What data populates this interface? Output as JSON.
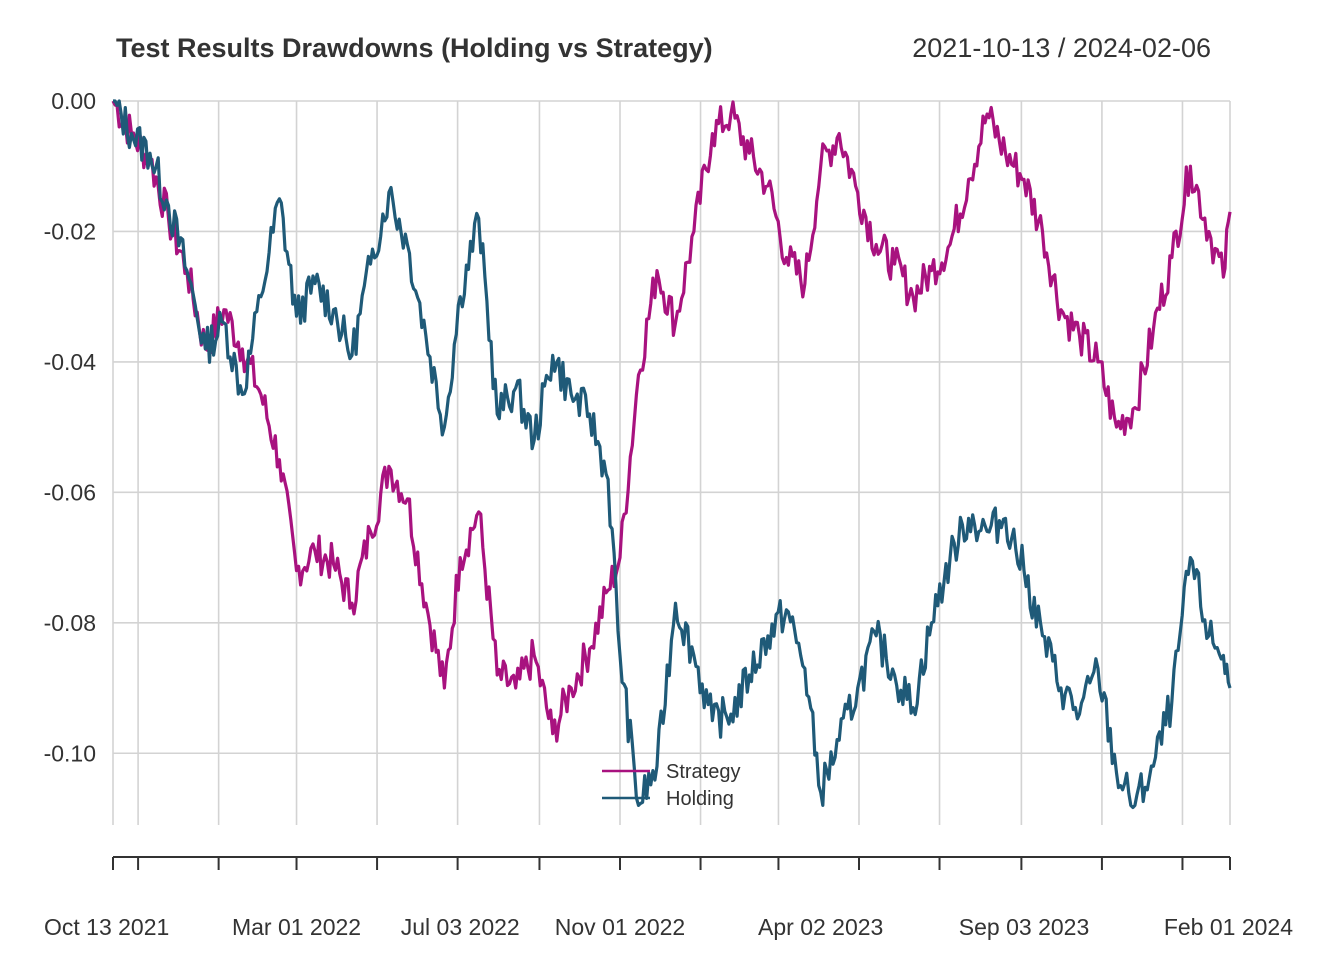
{
  "chart_data": {
    "type": "line",
    "title": "Test Results Drawdowns (Holding vs Strategy)",
    "date_range": "2021-10-13 / 2024-02-06",
    "xlabel": "",
    "ylabel": "",
    "x_range": [
      "2021-10-13",
      "2024-02-06"
    ],
    "ylim": [
      -0.111,
      0.0
    ],
    "y_ticks": [
      "0.00",
      "-0.02",
      "-0.04",
      "-0.06",
      "-0.08",
      "-0.10"
    ],
    "y_tick_values": [
      0.0,
      -0.02,
      -0.04,
      -0.06,
      -0.08,
      -0.1
    ],
    "x_tick_labels": [
      {
        "date": "2021-10-13",
        "label": "Oct 13 2021"
      },
      {
        "date": "2022-03-01",
        "label": "Mar 01 2022"
      },
      {
        "date": "2022-07-03",
        "label": "Jul 03 2022"
      },
      {
        "date": "2022-11-01",
        "label": "Nov 01 2022"
      },
      {
        "date": "2023-04-02",
        "label": "Apr 02 2023"
      },
      {
        "date": "2023-09-03",
        "label": "Sep 03 2023"
      },
      {
        "date": "2024-02-01",
        "label": "Feb 01 2024"
      }
    ],
    "grid": true,
    "legend_position": "bottom-center",
    "series": [
      {
        "name": "Strategy",
        "color": "#A8127F",
        "points": [
          [
            "2021-10-13",
            0.0
          ],
          [
            "2021-10-27",
            -0.005
          ],
          [
            "2021-11-10",
            -0.009
          ],
          [
            "2021-11-24",
            -0.018
          ],
          [
            "2021-12-08",
            -0.026
          ],
          [
            "2021-12-22",
            -0.038
          ],
          [
            "2022-01-05",
            -0.032
          ],
          [
            "2022-01-19",
            -0.038
          ],
          [
            "2022-02-02",
            -0.045
          ],
          [
            "2022-02-16",
            -0.055
          ],
          [
            "2022-03-01",
            -0.072
          ],
          [
            "2022-03-15",
            -0.069
          ],
          [
            "2022-03-29",
            -0.071
          ],
          [
            "2022-04-12",
            -0.077
          ],
          [
            "2022-04-26",
            -0.066
          ],
          [
            "2022-05-10",
            -0.056
          ],
          [
            "2022-05-24",
            -0.061
          ],
          [
            "2022-06-07",
            -0.077
          ],
          [
            "2022-06-21",
            -0.09
          ],
          [
            "2022-07-03",
            -0.07
          ],
          [
            "2022-07-17",
            -0.063
          ],
          [
            "2022-07-31",
            -0.088
          ],
          [
            "2022-08-14",
            -0.09
          ],
          [
            "2022-08-28",
            -0.085
          ],
          [
            "2022-09-11",
            -0.097
          ],
          [
            "2022-09-25",
            -0.09
          ],
          [
            "2022-10-09",
            -0.084
          ],
          [
            "2022-10-23",
            -0.075
          ],
          [
            "2022-11-01",
            -0.07
          ],
          [
            "2022-11-15",
            -0.042
          ],
          [
            "2022-11-29",
            -0.026
          ],
          [
            "2022-12-13",
            -0.034
          ],
          [
            "2022-12-27",
            -0.02
          ],
          [
            "2023-01-10",
            -0.005
          ],
          [
            "2023-01-24",
            -0.002
          ],
          [
            "2023-02-07",
            -0.008
          ],
          [
            "2023-02-21",
            -0.013
          ],
          [
            "2023-03-07",
            -0.024
          ],
          [
            "2023-03-21",
            -0.028
          ],
          [
            "2023-04-02",
            -0.01
          ],
          [
            "2023-04-16",
            -0.005
          ],
          [
            "2023-04-30",
            -0.014
          ],
          [
            "2023-05-14",
            -0.022
          ],
          [
            "2023-05-28",
            -0.025
          ],
          [
            "2023-06-11",
            -0.03
          ],
          [
            "2023-06-25",
            -0.026
          ],
          [
            "2023-07-09",
            -0.022
          ],
          [
            "2023-07-23",
            -0.012
          ],
          [
            "2023-08-06",
            -0.002
          ],
          [
            "2023-08-20",
            -0.008
          ],
          [
            "2023-09-03",
            -0.012
          ],
          [
            "2023-09-17",
            -0.02
          ],
          [
            "2023-10-01",
            -0.032
          ],
          [
            "2023-10-15",
            -0.036
          ],
          [
            "2023-10-29",
            -0.04
          ],
          [
            "2023-11-12",
            -0.05
          ],
          [
            "2023-11-26",
            -0.047
          ],
          [
            "2023-12-10",
            -0.035
          ],
          [
            "2023-12-24",
            -0.024
          ],
          [
            "2024-01-07",
            -0.01
          ],
          [
            "2024-01-21",
            -0.02
          ],
          [
            "2024-02-01",
            -0.027
          ],
          [
            "2024-02-06",
            -0.017
          ]
        ]
      },
      {
        "name": "Holding",
        "color": "#1F5A78",
        "points": [
          [
            "2021-10-13",
            0.0
          ],
          [
            "2021-10-27",
            -0.005
          ],
          [
            "2021-11-10",
            -0.008
          ],
          [
            "2021-11-24",
            -0.016
          ],
          [
            "2021-12-08",
            -0.026
          ],
          [
            "2021-12-22",
            -0.038
          ],
          [
            "2022-01-05",
            -0.034
          ],
          [
            "2022-01-19",
            -0.045
          ],
          [
            "2022-02-02",
            -0.03
          ],
          [
            "2022-02-16",
            -0.015
          ],
          [
            "2022-03-01",
            -0.033
          ],
          [
            "2022-03-15",
            -0.028
          ],
          [
            "2022-03-29",
            -0.032
          ],
          [
            "2022-04-12",
            -0.039
          ],
          [
            "2022-04-26",
            -0.025
          ],
          [
            "2022-05-10",
            -0.014
          ],
          [
            "2022-05-24",
            -0.022
          ],
          [
            "2022-06-07",
            -0.036
          ],
          [
            "2022-06-21",
            -0.05
          ],
          [
            "2022-07-03",
            -0.03
          ],
          [
            "2022-07-17",
            -0.018
          ],
          [
            "2022-07-31",
            -0.048
          ],
          [
            "2022-08-14",
            -0.044
          ],
          [
            "2022-08-28",
            -0.052
          ],
          [
            "2022-09-11",
            -0.039
          ],
          [
            "2022-09-25",
            -0.045
          ],
          [
            "2022-10-09",
            -0.048
          ],
          [
            "2022-10-23",
            -0.058
          ],
          [
            "2022-11-01",
            -0.085
          ],
          [
            "2022-11-15",
            -0.108
          ],
          [
            "2022-11-29",
            -0.102
          ],
          [
            "2022-12-13",
            -0.077
          ],
          [
            "2022-12-27",
            -0.085
          ],
          [
            "2023-01-10",
            -0.095
          ],
          [
            "2023-01-24",
            -0.094
          ],
          [
            "2023-02-07",
            -0.088
          ],
          [
            "2023-02-21",
            -0.082
          ],
          [
            "2023-03-07",
            -0.078
          ],
          [
            "2023-03-21",
            -0.087
          ],
          [
            "2023-04-02",
            -0.106
          ],
          [
            "2023-04-16",
            -0.098
          ],
          [
            "2023-04-30",
            -0.09
          ],
          [
            "2023-05-14",
            -0.082
          ],
          [
            "2023-05-28",
            -0.088
          ],
          [
            "2023-06-11",
            -0.093
          ],
          [
            "2023-06-25",
            -0.08
          ],
          [
            "2023-07-09",
            -0.07
          ],
          [
            "2023-07-23",
            -0.064
          ],
          [
            "2023-08-06",
            -0.066
          ],
          [
            "2023-08-20",
            -0.064
          ],
          [
            "2023-09-03",
            -0.072
          ],
          [
            "2023-09-17",
            -0.082
          ],
          [
            "2023-10-01",
            -0.09
          ],
          [
            "2023-10-15",
            -0.094
          ],
          [
            "2023-10-29",
            -0.087
          ],
          [
            "2023-11-12",
            -0.103
          ],
          [
            "2023-11-26",
            -0.108
          ],
          [
            "2023-12-10",
            -0.102
          ],
          [
            "2023-12-24",
            -0.092
          ],
          [
            "2024-01-07",
            -0.07
          ],
          [
            "2024-01-21",
            -0.082
          ],
          [
            "2024-02-01",
            -0.085
          ],
          [
            "2024-02-06",
            -0.09
          ]
        ]
      }
    ]
  }
}
